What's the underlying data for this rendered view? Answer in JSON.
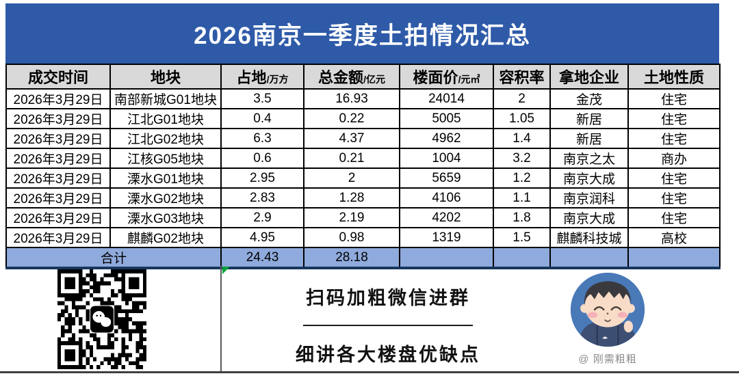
{
  "title": "2026南京一季度土拍情况汇总",
  "table": {
    "columns": [
      {
        "label": "成交时间",
        "unit": ""
      },
      {
        "label": "地块",
        "unit": ""
      },
      {
        "label": "占地",
        "unit": "/万方"
      },
      {
        "label": "总金额",
        "unit": "/亿元"
      },
      {
        "label": "楼面价",
        "unit": "/元㎡"
      },
      {
        "label": "容积率",
        "unit": ""
      },
      {
        "label": "拿地企业",
        "unit": ""
      },
      {
        "label": "土地性质",
        "unit": ""
      }
    ],
    "rows": [
      [
        "2026年3月29日",
        "南部新城G01地块",
        "3.5",
        "16.93",
        "24014",
        "2",
        "金茂",
        "住宅"
      ],
      [
        "2026年3月29日",
        "江北G01地块",
        "0.4",
        "0.22",
        "5005",
        "1.05",
        "新居",
        "住宅"
      ],
      [
        "2026年3月29日",
        "江北G02地块",
        "6.3",
        "4.37",
        "4962",
        "1.4",
        "新居",
        "住宅"
      ],
      [
        "2026年3月29日",
        "江核G05地块",
        "0.6",
        "0.21",
        "1004",
        "3.2",
        "南京之太",
        "商办"
      ],
      [
        "2026年3月29日",
        "溧水G01地块",
        "2.95",
        "2",
        "5659",
        "1.2",
        "南京大成",
        "住宅"
      ],
      [
        "2026年3月29日",
        "溧水G02地块",
        "2.83",
        "1.28",
        "4106",
        "1.1",
        "南京润科",
        "住宅"
      ],
      [
        "2026年3月29日",
        "溧水G03地块",
        "2.9",
        "2.19",
        "4202",
        "1.8",
        "南京大成",
        "住宅"
      ],
      [
        "2026年3月29日",
        "麒麟G02地块",
        "4.95",
        "0.98",
        "1319",
        "1.5",
        "麒麟科技城",
        "高校"
      ]
    ],
    "total": {
      "label": "合计",
      "area_sum": "24.43",
      "amount_sum": "28.18"
    }
  },
  "footer": {
    "qr_icon": "wechat-icon",
    "line1": "扫码加粗微信进群",
    "line2": "细讲各大楼盘优缺点",
    "avatar_caption": "@ 刚需粗粗"
  },
  "colors": {
    "banner_blue": "#2e5aa8",
    "header_gray": "#d9d9d9",
    "total_row_blue": "#8faadc",
    "total_border_navy": "#17375e",
    "error_triangle_green": "#00a33c",
    "avatar_bg_blue": "#4a79b8"
  }
}
